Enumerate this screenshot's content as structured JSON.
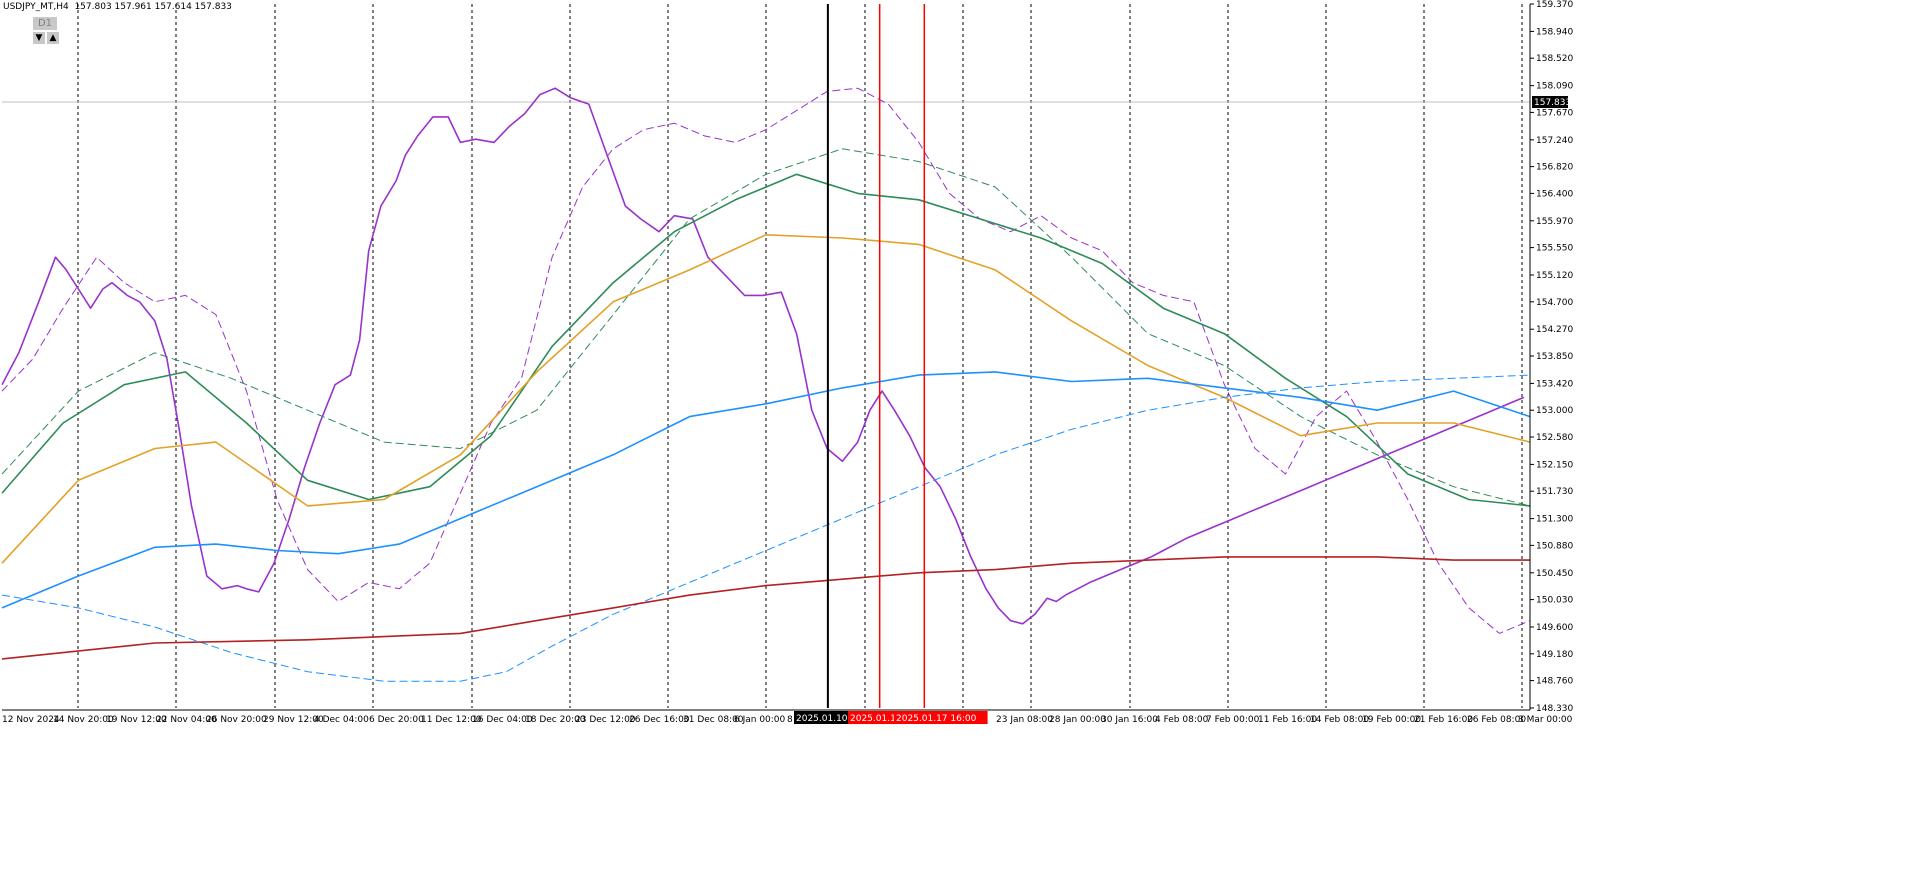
{
  "header": {
    "symbol_info": "USDJPY_MT,H4  157.803 157.961 157.614 157.833",
    "timeframe_button": "D1",
    "arrow_down": "▼",
    "arrow_up": "▲"
  },
  "chart_data": {
    "type": "line",
    "xlim": [
      0,
      1
    ],
    "ylim": [
      148.33,
      159.37
    ],
    "price_ticks": [
      "159.370",
      "158.940",
      "158.520",
      "158.090",
      "157.670",
      "157.240",
      "156.820",
      "156.400",
      "155.970",
      "155.550",
      "155.120",
      "154.700",
      "154.270",
      "153.850",
      "153.420",
      "153.000",
      "152.580",
      "152.150",
      "151.730",
      "151.300",
      "150.880",
      "150.450",
      "150.030",
      "149.600",
      "149.180",
      "148.760",
      "148.330"
    ],
    "current_price": "157.833",
    "time_labels": [
      {
        "x": 0.0,
        "text": "12 Nov 2024"
      },
      {
        "x": 0.0488,
        "text": "14 Nov 20:00"
      },
      {
        "x": 0.1117,
        "text": "19 Nov 12:00"
      },
      {
        "x": 0.1762,
        "text": "22 Nov 04:00"
      },
      {
        "x": 0.2392,
        "text": "26 Nov 20:00"
      },
      {
        "x": 0.3029,
        "text": "29 Nov 12:00"
      },
      {
        "x": 0.3665,
        "text": "4 Dec 04:00"
      },
      {
        "x": 0.4302,
        "text": "6 Dec 20:00"
      },
      {
        "x": 0.4938,
        "text": "11 Dec 12:00"
      },
      {
        "x": 0.5574,
        "text": "16 Dec 04:00"
      },
      {
        "x": 0.6211,
        "text": "18 Dec 20:00"
      },
      {
        "x": 0.6847,
        "text": "23 Dec 12:00"
      },
      {
        "x": 0.7484,
        "text": "26 Dec 16:00"
      },
      {
        "x": 0.812,
        "text": "31 Dec 08:00"
      },
      {
        "x": 0.8757,
        "text": "6 Jan 00:00"
      },
      {
        "x": 0.9393,
        "text": "8"
      },
      {
        "x": 0.627,
        "text": "an 16:00"
      },
      {
        "x": 0.6621,
        "text": "23 Jan 08:00"
      },
      {
        "x": 0.7249,
        "text": "28 Jan 00:00"
      },
      {
        "x": 0.7886,
        "text": "30 Jan 16:00"
      },
      {
        "x": 0.8522,
        "text": "4 Feb 08:00"
      },
      {
        "x": 0.9158,
        "text": "7 Feb 00:00"
      },
      {
        "x": 0.9803,
        "text": "11 Feb 16:00"
      }
    ],
    "time_labels_right": [
      {
        "x": 0.0,
        "text": "14 Feb 08:00"
      },
      {
        "x": 0.0,
        "text": "19 Feb 00:00"
      },
      {
        "x": 0.0,
        "text": "21 Feb 16:00"
      },
      {
        "x": 0.0,
        "text": "26 Feb 08:00"
      },
      {
        "x": 0.0,
        "text": "3 Mar 00:00"
      }
    ],
    "markers": [
      {
        "text": "2025.01.10 16",
        "x": 0.5405,
        "color": "#000000"
      },
      {
        "text": "2025.01.15 (",
        "x": 0.5744,
        "color": "#ff0000"
      },
      {
        "text": "2025.01.17 16:00",
        "x": 0.6036,
        "color": "#ff0000"
      }
    ],
    "series": [
      {
        "style": "solid",
        "color": "#9932cc",
        "width": 1.6,
        "x": [
          0,
          0.011,
          0.024,
          0.035,
          0.042,
          0.05,
          0.058,
          0.066,
          0.072,
          0.082,
          0.09,
          0.1,
          0.108,
          0.116,
          0.124,
          0.134,
          0.144,
          0.154,
          0.16,
          0.168,
          0.178,
          0.188,
          0.198,
          0.208,
          0.218,
          0.228,
          0.234,
          0.24,
          0.248,
          0.258,
          0.264,
          0.272,
          0.282,
          0.292,
          0.3,
          0.31,
          0.322,
          0.332,
          0.342,
          0.352,
          0.362,
          0.372,
          0.384,
          0.396,
          0.408,
          0.418,
          0.43,
          0.44,
          0.452,
          0.462,
          0.474,
          0.486,
          0.498,
          0.51,
          0.52,
          0.53,
          0.54,
          0.55,
          0.56,
          0.568,
          0.576,
          0.584,
          0.594,
          0.604,
          0.614,
          0.624,
          0.634,
          0.644,
          0.652,
          0.66,
          0.668,
          0.676,
          0.684,
          0.69,
          0.696,
          0.704,
          0.712,
          0.722,
          0.732,
          0.742,
          0.752,
          0.76,
          0.768,
          0.776,
          0.786,
          0.796,
          0.806,
          0.816,
          0.826,
          0.836,
          0.846,
          0.856,
          0.866,
          0.876,
          0.886,
          0.896,
          0.906,
          0.916,
          0.926,
          0.936,
          0.946,
          0.956,
          0.966,
          0.976,
          0.986,
          0.996
        ],
        "y": [
          153.4,
          153.9,
          154.7,
          155.4,
          155.2,
          154.9,
          154.6,
          154.9,
          155.0,
          154.8,
          154.7,
          154.4,
          153.8,
          152.7,
          151.5,
          150.4,
          150.2,
          150.25,
          150.2,
          150.15,
          150.6,
          151.3,
          152.1,
          152.8,
          153.4,
          153.55,
          154.1,
          155.5,
          156.2,
          156.6,
          157.0,
          157.3,
          157.6,
          157.6,
          157.2,
          157.25,
          157.2,
          157.45,
          157.65,
          157.95,
          158.05,
          157.9,
          157.8,
          157.0,
          156.2,
          156.0,
          155.8,
          156.05,
          156.0,
          155.4,
          155.1,
          154.8,
          154.8,
          154.85,
          154.2,
          153.0,
          152.4,
          152.2,
          152.5,
          153.0,
          153.3,
          153.0,
          152.6,
          152.1,
          151.8,
          151.3,
          150.7,
          150.2,
          149.9,
          149.7,
          149.65,
          149.8,
          150.05,
          150.0,
          150.1,
          150.2,
          150.3,
          150.4,
          150.5,
          150.6,
          150.7,
          150.8,
          150.9,
          151.0,
          151.1,
          151.2,
          151.3,
          151.4,
          151.5,
          151.6,
          151.7,
          151.8,
          151.9,
          152.0,
          152.1,
          152.2,
          152.3,
          152.4,
          152.5,
          152.6,
          152.7,
          152.8,
          152.9,
          153.0,
          153.1,
          153.2
        ]
      },
      {
        "style": "dashed",
        "color": "#9932cc",
        "width": 1,
        "x": [
          0.0,
          0.02,
          0.04,
          0.062,
          0.08,
          0.1,
          0.12,
          0.14,
          0.16,
          0.18,
          0.2,
          0.22,
          0.24,
          0.26,
          0.28,
          0.3,
          0.32,
          0.34,
          0.36,
          0.38,
          0.4,
          0.42,
          0.44,
          0.46,
          0.48,
          0.5,
          0.52,
          0.54,
          0.56,
          0.58,
          0.6,
          0.62,
          0.64,
          0.66,
          0.68,
          0.7,
          0.72,
          0.74,
          0.76,
          0.78,
          0.8,
          0.82,
          0.84,
          0.86,
          0.88,
          0.9,
          0.92,
          0.94,
          0.96,
          0.98,
          1.0
        ],
        "y": [
          153.3,
          153.8,
          154.6,
          155.4,
          155.0,
          154.7,
          154.8,
          154.5,
          153.3,
          151.6,
          150.5,
          150.0,
          150.3,
          150.2,
          150.6,
          151.7,
          152.8,
          153.5,
          155.4,
          156.5,
          157.1,
          157.4,
          157.5,
          157.3,
          157.2,
          157.4,
          157.7,
          158.0,
          158.05,
          157.8,
          157.2,
          156.4,
          156.0,
          155.8,
          156.05,
          155.7,
          155.5,
          155.0,
          154.8,
          154.7,
          153.4,
          152.4,
          152.0,
          152.9,
          153.3,
          152.5,
          151.6,
          150.6,
          149.9,
          149.5,
          149.7
        ]
      },
      {
        "style": "solid",
        "color": "#2e8b57",
        "width": 1.6,
        "x": [
          0,
          0.04,
          0.08,
          0.12,
          0.16,
          0.2,
          0.24,
          0.28,
          0.32,
          0.36,
          0.4,
          0.44,
          0.48,
          0.52,
          0.56,
          0.6,
          0.64,
          0.68,
          0.72,
          0.76,
          0.8,
          0.84,
          0.88,
          0.92,
          0.96,
          1.0
        ],
        "y": [
          151.7,
          152.8,
          153.4,
          153.6,
          152.8,
          151.9,
          151.6,
          151.8,
          152.6,
          154.0,
          155.0,
          155.8,
          156.3,
          156.7,
          156.4,
          156.3,
          156.0,
          155.7,
          155.3,
          154.6,
          154.2,
          153.5,
          152.9,
          152.0,
          151.6,
          151.5
        ]
      },
      {
        "style": "dashed",
        "color": "#2e8b57",
        "width": 1,
        "x": [
          0,
          0.05,
          0.1,
          0.15,
          0.2,
          0.25,
          0.3,
          0.35,
          0.4,
          0.45,
          0.5,
          0.55,
          0.6,
          0.65,
          0.7,
          0.75,
          0.8,
          0.85,
          0.9,
          0.95,
          1.0
        ],
        "y": [
          152.0,
          153.3,
          153.9,
          153.5,
          153.0,
          152.5,
          152.4,
          153.0,
          154.5,
          156.0,
          156.7,
          157.1,
          156.9,
          156.5,
          155.4,
          154.2,
          153.7,
          152.9,
          152.3,
          151.8,
          151.5
        ]
      },
      {
        "style": "solid",
        "color": "#e4a128",
        "width": 1.6,
        "x": [
          0,
          0.05,
          0.1,
          0.14,
          0.2,
          0.25,
          0.3,
          0.35,
          0.4,
          0.45,
          0.5,
          0.55,
          0.6,
          0.65,
          0.7,
          0.75,
          0.8,
          0.85,
          0.9,
          0.95,
          1.0
        ],
        "y": [
          150.6,
          151.9,
          152.4,
          152.5,
          151.5,
          151.6,
          152.3,
          153.6,
          154.7,
          155.2,
          155.75,
          155.7,
          155.6,
          155.2,
          154.4,
          153.7,
          153.2,
          152.6,
          152.8,
          152.8,
          152.5
        ]
      },
      {
        "style": "solid",
        "color": "#1e90ff",
        "width": 1.6,
        "x": [
          0,
          0.05,
          0.1,
          0.14,
          0.18,
          0.22,
          0.26,
          0.3,
          0.35,
          0.4,
          0.45,
          0.5,
          0.55,
          0.6,
          0.65,
          0.7,
          0.75,
          0.8,
          0.85,
          0.9,
          0.95,
          1.0
        ],
        "y": [
          149.9,
          150.4,
          150.85,
          150.9,
          150.8,
          150.75,
          150.9,
          151.3,
          151.8,
          152.3,
          152.9,
          153.1,
          153.35,
          153.55,
          153.6,
          153.45,
          153.5,
          153.35,
          153.2,
          153.0,
          153.3,
          152.9
        ]
      },
      {
        "style": "dashed",
        "color": "#1e90ff",
        "width": 1,
        "x": [
          0,
          0.05,
          0.1,
          0.15,
          0.2,
          0.25,
          0.3,
          0.33,
          0.36,
          0.4,
          0.45,
          0.5,
          0.55,
          0.6,
          0.65,
          0.7,
          0.75,
          0.8,
          0.85,
          0.9,
          0.95,
          1.0
        ],
        "y": [
          150.1,
          149.9,
          149.6,
          149.2,
          148.9,
          148.75,
          148.75,
          148.9,
          149.3,
          149.8,
          150.3,
          150.8,
          151.3,
          151.8,
          152.3,
          152.7,
          153.0,
          153.2,
          153.35,
          153.45,
          153.5,
          153.55
        ]
      },
      {
        "style": "solid",
        "color": "#b22222",
        "width": 1.6,
        "x": [
          0,
          0.1,
          0.2,
          0.3,
          0.35,
          0.4,
          0.45,
          0.5,
          0.55,
          0.6,
          0.65,
          0.7,
          0.75,
          0.8,
          0.85,
          0.9,
          0.95,
          1.0
        ],
        "y": [
          149.1,
          149.35,
          149.4,
          149.5,
          149.7,
          149.9,
          150.1,
          150.25,
          150.35,
          150.45,
          150.5,
          150.6,
          150.65,
          150.7,
          150.7,
          150.7,
          150.65,
          150.65
        ]
      }
    ],
    "grid": true
  }
}
